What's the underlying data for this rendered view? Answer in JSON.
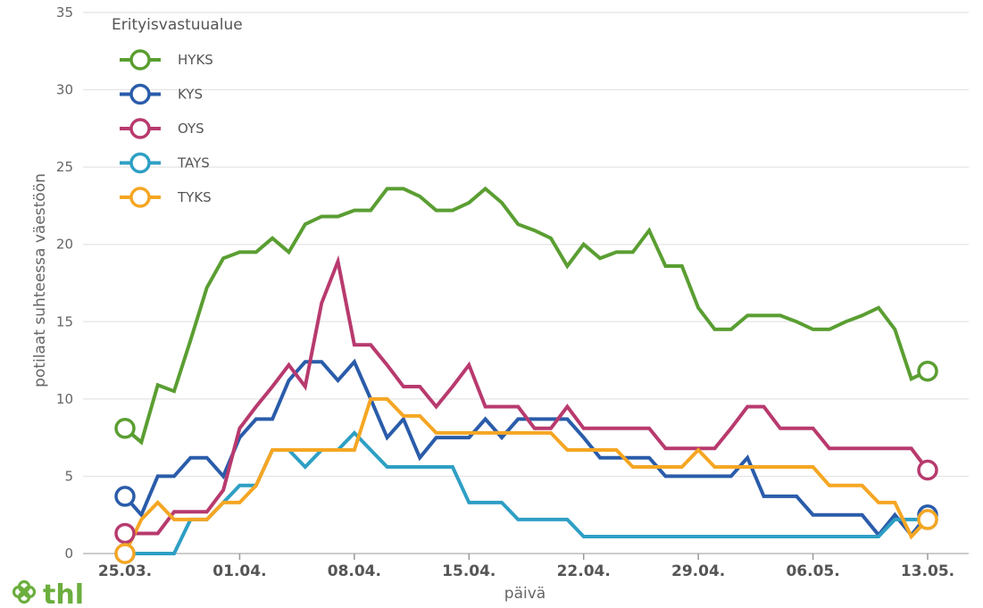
{
  "logo": {
    "text": "thl"
  },
  "chart_data": {
    "type": "line",
    "title": "",
    "xlabel": "päivä",
    "ylabel": "potilaat suhteessa väestöön",
    "ylim": [
      0,
      35
    ],
    "yticks": [
      0,
      5,
      10,
      15,
      20,
      25,
      30,
      35
    ],
    "xlim": [
      "2020-03-25",
      "2020-05-13"
    ],
    "xticks": [
      "2020-03-25",
      "2020-04-01",
      "2020-04-08",
      "2020-04-15",
      "2020-04-22",
      "2020-04-29",
      "2020-05-06",
      "2020-05-13"
    ],
    "xtick_labels": [
      "25.03.",
      "01.04.",
      "08.04.",
      "15.04.",
      "22.04.",
      "29.04.",
      "06.05.",
      "13.05."
    ],
    "grid": true,
    "legend": {
      "title": "Erityisvastuualue",
      "position": "top-left"
    },
    "series": [
      {
        "name": "HYKS",
        "color": "#5a9e32",
        "x": [
          "2020-03-25",
          "2020-03-26",
          "2020-03-27",
          "2020-03-28",
          "2020-03-29",
          "2020-03-30",
          "2020-03-31",
          "2020-04-01",
          "2020-04-02",
          "2020-04-03",
          "2020-04-04",
          "2020-04-05",
          "2020-04-06",
          "2020-04-07",
          "2020-04-08",
          "2020-04-09",
          "2020-04-10",
          "2020-04-11",
          "2020-04-12",
          "2020-04-13",
          "2020-04-14",
          "2020-04-15",
          "2020-04-16",
          "2020-04-17",
          "2020-04-18",
          "2020-04-19",
          "2020-04-20",
          "2020-04-21",
          "2020-04-22",
          "2020-04-23",
          "2020-04-24",
          "2020-04-25",
          "2020-04-26",
          "2020-04-27",
          "2020-04-28",
          "2020-04-29",
          "2020-04-30",
          "2020-05-01",
          "2020-05-02",
          "2020-05-03",
          "2020-05-04",
          "2020-05-05",
          "2020-05-06",
          "2020-05-07",
          "2020-05-08",
          "2020-05-09",
          "2020-05-10",
          "2020-05-11",
          "2020-05-12",
          "2020-05-13"
        ],
        "y": [
          8.1,
          7.2,
          10.9,
          10.5,
          13.8,
          17.2,
          19.1,
          19.5,
          19.5,
          20.4,
          19.5,
          21.3,
          21.8,
          21.8,
          22.2,
          22.2,
          23.6,
          23.6,
          23.1,
          22.2,
          22.2,
          22.7,
          23.6,
          22.7,
          21.3,
          20.9,
          20.4,
          18.6,
          20.0,
          19.1,
          19.5,
          19.5,
          20.9,
          18.6,
          18.6,
          15.9,
          14.5,
          14.5,
          15.4,
          15.4,
          15.4,
          15.0,
          14.5,
          14.5,
          15.0,
          15.4,
          15.9,
          14.5,
          11.3,
          11.8
        ]
      },
      {
        "name": "KYS",
        "color": "#2a5caa",
        "x": [
          "2020-03-25",
          "2020-03-26",
          "2020-03-27",
          "2020-03-28",
          "2020-03-29",
          "2020-03-30",
          "2020-03-31",
          "2020-04-01",
          "2020-04-02",
          "2020-04-03",
          "2020-04-04",
          "2020-04-05",
          "2020-04-06",
          "2020-04-07",
          "2020-04-08",
          "2020-04-09",
          "2020-04-10",
          "2020-04-11",
          "2020-04-12",
          "2020-04-13",
          "2020-04-14",
          "2020-04-15",
          "2020-04-16",
          "2020-04-17",
          "2020-04-18",
          "2020-04-19",
          "2020-04-20",
          "2020-04-21",
          "2020-04-22",
          "2020-04-23",
          "2020-04-24",
          "2020-04-25",
          "2020-04-26",
          "2020-04-27",
          "2020-04-28",
          "2020-04-29",
          "2020-04-30",
          "2020-05-01",
          "2020-05-02",
          "2020-05-03",
          "2020-05-04",
          "2020-05-05",
          "2020-05-06",
          "2020-05-07",
          "2020-05-08",
          "2020-05-09",
          "2020-05-10",
          "2020-05-11",
          "2020-05-12",
          "2020-05-13"
        ],
        "y": [
          3.7,
          2.5,
          5.0,
          5.0,
          6.2,
          6.2,
          5.0,
          7.5,
          8.7,
          8.7,
          11.2,
          12.4,
          12.4,
          11.2,
          12.4,
          10.0,
          7.5,
          8.7,
          6.2,
          7.5,
          7.5,
          7.5,
          8.7,
          7.5,
          8.7,
          8.7,
          8.7,
          8.7,
          7.5,
          6.2,
          6.2,
          6.2,
          6.2,
          5.0,
          5.0,
          5.0,
          5.0,
          5.0,
          6.2,
          3.7,
          3.7,
          3.7,
          2.5,
          2.5,
          2.5,
          2.5,
          1.2,
          2.5,
          1.2,
          2.5
        ]
      },
      {
        "name": "OYS",
        "color": "#b83a6e",
        "x": [
          "2020-03-25",
          "2020-03-26",
          "2020-03-27",
          "2020-03-28",
          "2020-03-29",
          "2020-03-30",
          "2020-03-31",
          "2020-04-01",
          "2020-04-02",
          "2020-04-03",
          "2020-04-04",
          "2020-04-05",
          "2020-04-06",
          "2020-04-07",
          "2020-04-08",
          "2020-04-09",
          "2020-04-10",
          "2020-04-11",
          "2020-04-12",
          "2020-04-13",
          "2020-04-14",
          "2020-04-15",
          "2020-04-16",
          "2020-04-17",
          "2020-04-18",
          "2020-04-19",
          "2020-04-20",
          "2020-04-21",
          "2020-04-22",
          "2020-04-23",
          "2020-04-24",
          "2020-04-25",
          "2020-04-26",
          "2020-04-27",
          "2020-04-28",
          "2020-04-29",
          "2020-04-30",
          "2020-05-01",
          "2020-05-02",
          "2020-05-03",
          "2020-05-04",
          "2020-05-05",
          "2020-05-06",
          "2020-05-07",
          "2020-05-08",
          "2020-05-09",
          "2020-05-10",
          "2020-05-11",
          "2020-05-12",
          "2020-05-13"
        ],
        "y": [
          1.3,
          1.3,
          1.3,
          2.7,
          2.7,
          2.7,
          4.1,
          8.1,
          9.5,
          10.8,
          12.2,
          10.8,
          16.2,
          18.9,
          13.5,
          13.5,
          12.2,
          10.8,
          10.8,
          9.5,
          10.8,
          12.2,
          9.5,
          9.5,
          9.5,
          8.1,
          8.1,
          9.5,
          8.1,
          8.1,
          8.1,
          8.1,
          8.1,
          6.8,
          6.8,
          6.8,
          6.8,
          8.1,
          9.5,
          9.5,
          8.1,
          8.1,
          8.1,
          6.8,
          6.8,
          6.8,
          6.8,
          6.8,
          6.8,
          5.4
        ]
      },
      {
        "name": "TAYS",
        "color": "#2e9fc4",
        "x": [
          "2020-03-25",
          "2020-03-26",
          "2020-03-27",
          "2020-03-28",
          "2020-03-29",
          "2020-03-30",
          "2020-03-31",
          "2020-04-01",
          "2020-04-02",
          "2020-04-03",
          "2020-04-04",
          "2020-04-05",
          "2020-04-06",
          "2020-04-07",
          "2020-04-08",
          "2020-04-09",
          "2020-04-10",
          "2020-04-11",
          "2020-04-12",
          "2020-04-13",
          "2020-04-14",
          "2020-04-15",
          "2020-04-16",
          "2020-04-17",
          "2020-04-18",
          "2020-04-19",
          "2020-04-20",
          "2020-04-21",
          "2020-04-22",
          "2020-04-23",
          "2020-04-24",
          "2020-04-25",
          "2020-04-26",
          "2020-04-27",
          "2020-04-28",
          "2020-04-29",
          "2020-04-30",
          "2020-05-01",
          "2020-05-02",
          "2020-05-03",
          "2020-05-04",
          "2020-05-05",
          "2020-05-06",
          "2020-05-07",
          "2020-05-08",
          "2020-05-09",
          "2020-05-10",
          "2020-05-11",
          "2020-05-12",
          "2020-05-13"
        ],
        "y": [
          0,
          0,
          0,
          0,
          2.2,
          2.2,
          3.3,
          4.4,
          4.4,
          6.7,
          6.7,
          5.6,
          6.7,
          6.7,
          7.8,
          6.7,
          5.6,
          5.6,
          5.6,
          5.6,
          5.6,
          3.3,
          3.3,
          3.3,
          2.2,
          2.2,
          2.2,
          2.2,
          1.1,
          1.1,
          1.1,
          1.1,
          1.1,
          1.1,
          1.1,
          1.1,
          1.1,
          1.1,
          1.1,
          1.1,
          1.1,
          1.1,
          1.1,
          1.1,
          1.1,
          1.1,
          1.1,
          2.2,
          2.2,
          2.2
        ]
      },
      {
        "name": "TYKS",
        "color": "#f5a623",
        "x": [
          "2020-03-25",
          "2020-03-26",
          "2020-03-27",
          "2020-03-28",
          "2020-03-29",
          "2020-03-30",
          "2020-03-31",
          "2020-04-01",
          "2020-04-02",
          "2020-04-03",
          "2020-04-04",
          "2020-04-05",
          "2020-04-06",
          "2020-04-07",
          "2020-04-08",
          "2020-04-09",
          "2020-04-10",
          "2020-04-11",
          "2020-04-12",
          "2020-04-13",
          "2020-04-14",
          "2020-04-15",
          "2020-04-16",
          "2020-04-17",
          "2020-04-18",
          "2020-04-19",
          "2020-04-20",
          "2020-04-21",
          "2020-04-22",
          "2020-04-23",
          "2020-04-24",
          "2020-04-25",
          "2020-04-26",
          "2020-04-27",
          "2020-04-28",
          "2020-04-29",
          "2020-04-30",
          "2020-05-01",
          "2020-05-02",
          "2020-05-03",
          "2020-05-04",
          "2020-05-05",
          "2020-05-06",
          "2020-05-07",
          "2020-05-08",
          "2020-05-09",
          "2020-05-10",
          "2020-05-11",
          "2020-05-12",
          "2020-05-13"
        ],
        "y": [
          0,
          2.2,
          3.3,
          2.2,
          2.2,
          2.2,
          3.3,
          3.3,
          4.4,
          6.7,
          6.7,
          6.7,
          6.7,
          6.7,
          6.7,
          10.0,
          10.0,
          8.9,
          8.9,
          7.8,
          7.8,
          7.8,
          7.8,
          7.8,
          7.8,
          7.8,
          7.8,
          6.7,
          6.7,
          6.7,
          6.7,
          5.6,
          5.6,
          5.6,
          5.6,
          6.7,
          5.6,
          5.6,
          5.6,
          5.6,
          5.6,
          5.6,
          5.6,
          4.4,
          4.4,
          4.4,
          3.3,
          3.3,
          1.1,
          2.2
        ]
      }
    ]
  }
}
